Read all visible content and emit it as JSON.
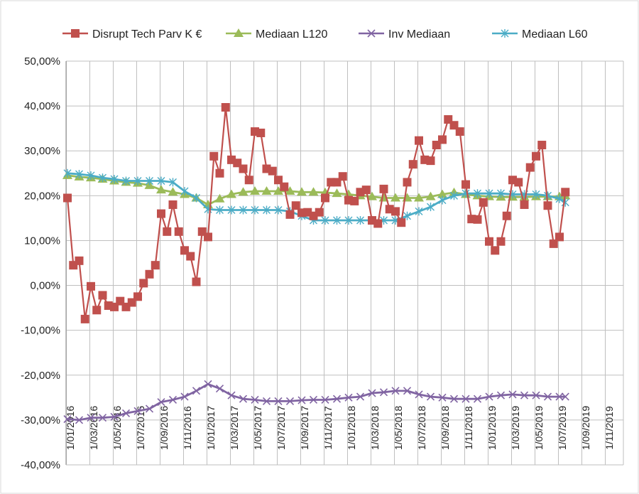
{
  "chart_data": {
    "type": "line",
    "title": "",
    "xlabel": "",
    "ylabel": "",
    "ylim": [
      -40,
      50
    ],
    "yticks": [
      50,
      40,
      30,
      20,
      10,
      0,
      -10,
      -20,
      -30,
      -40
    ],
    "ytick_labels": [
      "50,00%",
      "40,00%",
      "30,00%",
      "20,00%",
      "10,00%",
      "0,00%",
      "-10,00%",
      "-20,00%",
      "-30,00%",
      "-40,00%"
    ],
    "xticks": [
      "1/01/2016",
      "1/03/2016",
      "1/05/2016",
      "1/07/2016",
      "1/09/2016",
      "1/11/2016",
      "1/01/2017",
      "1/03/2017",
      "1/05/2017",
      "1/07/2017",
      "1/09/2017",
      "1/11/2017",
      "1/01/2018",
      "1/03/2018",
      "1/05/2018",
      "1/07/2018",
      "1/09/2018",
      "1/11/2018",
      "1/01/2019",
      "1/03/2019",
      "1/05/2019",
      "1/07/2019",
      "1/09/2019",
      "1/11/2019"
    ],
    "x_unit": "months since Jan 2016",
    "grid": true,
    "legend_position": "top",
    "series": [
      {
        "name": "Disrupt Tech Parv K €",
        "color": "#c0504d",
        "marker": "square",
        "points": [
          [
            0,
            19.5
          ],
          [
            0.5,
            4.5
          ],
          [
            1,
            5.5
          ],
          [
            1.5,
            -7.5
          ],
          [
            2,
            -0.2
          ],
          [
            2.5,
            -5.5
          ],
          [
            3,
            -2.2
          ],
          [
            3.5,
            -4.5
          ],
          [
            4,
            -4.8
          ],
          [
            4.5,
            -3.5
          ],
          [
            5,
            -4.8
          ],
          [
            5.5,
            -3.8
          ],
          [
            6,
            -2.5
          ],
          [
            6.5,
            0.5
          ],
          [
            7,
            2.5
          ],
          [
            7.5,
            4.5
          ],
          [
            8,
            16.0
          ],
          [
            8.5,
            12.0
          ],
          [
            9,
            18.0
          ],
          [
            9.5,
            12.0
          ],
          [
            10,
            7.8
          ],
          [
            10.5,
            6.5
          ],
          [
            11,
            0.8
          ],
          [
            11.5,
            12.0
          ],
          [
            12,
            10.8
          ],
          [
            12.5,
            28.8
          ],
          [
            13,
            25.0
          ],
          [
            13.5,
            39.7
          ],
          [
            14,
            28.0
          ],
          [
            14.5,
            27.3
          ],
          [
            15,
            26.0
          ],
          [
            15.5,
            23.5
          ],
          [
            16,
            34.3
          ],
          [
            16.5,
            34.0
          ],
          [
            17,
            26.0
          ],
          [
            17.5,
            25.5
          ],
          [
            18,
            23.5
          ],
          [
            18.5,
            22.0
          ],
          [
            19,
            15.8
          ],
          [
            19.5,
            17.8
          ],
          [
            20,
            16.2
          ],
          [
            20.5,
            16.3
          ],
          [
            21,
            15.5
          ],
          [
            21.5,
            16.3
          ],
          [
            22,
            19.5
          ],
          [
            22.5,
            23.0
          ],
          [
            23,
            23.0
          ],
          [
            23.5,
            24.3
          ],
          [
            24,
            19.0
          ],
          [
            24.5,
            18.8
          ],
          [
            25,
            20.8
          ],
          [
            25.5,
            21.3
          ],
          [
            26,
            14.5
          ],
          [
            26.5,
            13.8
          ],
          [
            27,
            21.5
          ],
          [
            27.5,
            17.0
          ],
          [
            28,
            16.5
          ],
          [
            28.5,
            14.0
          ],
          [
            29,
            23.0
          ],
          [
            29.5,
            27.0
          ],
          [
            30,
            32.3
          ],
          [
            30.5,
            28.0
          ],
          [
            31,
            27.8
          ],
          [
            31.5,
            31.3
          ],
          [
            32,
            32.5
          ],
          [
            32.5,
            37.0
          ],
          [
            33,
            35.7
          ],
          [
            33.5,
            34.3
          ],
          [
            34,
            22.5
          ],
          [
            34.5,
            14.8
          ],
          [
            35,
            14.7
          ],
          [
            35.5,
            18.5
          ],
          [
            36,
            9.8
          ],
          [
            36.5,
            7.8
          ],
          [
            37,
            9.8
          ],
          [
            37.5,
            15.5
          ],
          [
            38,
            23.5
          ],
          [
            38.5,
            23.0
          ],
          [
            39,
            18.0
          ],
          [
            39.5,
            26.3
          ],
          [
            40,
            28.8
          ],
          [
            40.5,
            31.3
          ],
          [
            41,
            17.8
          ],
          [
            41.5,
            9.3
          ],
          [
            42,
            10.8
          ],
          [
            42.5,
            20.8
          ]
        ]
      },
      {
        "name": "Mediaan L120",
        "color": "#9bbb59",
        "marker": "triangle",
        "points": [
          [
            0,
            24.5
          ],
          [
            1,
            24.2
          ],
          [
            2,
            24.0
          ],
          [
            3,
            23.7
          ],
          [
            4,
            23.3
          ],
          [
            5,
            23.0
          ],
          [
            6,
            22.8
          ],
          [
            7,
            22.3
          ],
          [
            8,
            21.3
          ],
          [
            9,
            20.8
          ],
          [
            10,
            20.3
          ],
          [
            11,
            19.5
          ],
          [
            12,
            18.0
          ],
          [
            13,
            19.3
          ],
          [
            14,
            20.3
          ],
          [
            15,
            20.8
          ],
          [
            16,
            21.0
          ],
          [
            17,
            21.0
          ],
          [
            18,
            21.0
          ],
          [
            19,
            21.0
          ],
          [
            20,
            20.8
          ],
          [
            21,
            20.8
          ],
          [
            22,
            20.7
          ],
          [
            23,
            20.5
          ],
          [
            24,
            20.3
          ],
          [
            25,
            20.0
          ],
          [
            26,
            19.8
          ],
          [
            27,
            19.5
          ],
          [
            28,
            19.5
          ],
          [
            29,
            19.5
          ],
          [
            30,
            19.5
          ],
          [
            31,
            19.8
          ],
          [
            32,
            20.3
          ],
          [
            33,
            20.7
          ],
          [
            34,
            20.3
          ],
          [
            35,
            20.0
          ],
          [
            36,
            19.8
          ],
          [
            37,
            19.7
          ],
          [
            38,
            19.7
          ],
          [
            39,
            19.7
          ],
          [
            40,
            19.8
          ],
          [
            41,
            19.8
          ],
          [
            42,
            19.8
          ],
          [
            42.5,
            20.0
          ]
        ]
      },
      {
        "name": "Inv Mediaan",
        "color": "#8064a2",
        "marker": "x",
        "points": [
          [
            0,
            -29.8
          ],
          [
            1,
            -30.0
          ],
          [
            2,
            -29.5
          ],
          [
            3,
            -29.5
          ],
          [
            4,
            -29.3
          ],
          [
            5,
            -28.5
          ],
          [
            6,
            -28.0
          ],
          [
            7,
            -27.5
          ],
          [
            8,
            -26.0
          ],
          [
            9,
            -25.5
          ],
          [
            10,
            -24.8
          ],
          [
            11,
            -23.5
          ],
          [
            12,
            -22.0
          ],
          [
            13,
            -23.0
          ],
          [
            14,
            -24.5
          ],
          [
            15,
            -25.3
          ],
          [
            16,
            -25.5
          ],
          [
            17,
            -25.8
          ],
          [
            18,
            -25.8
          ],
          [
            19,
            -25.8
          ],
          [
            20,
            -25.6
          ],
          [
            21,
            -25.5
          ],
          [
            22,
            -25.5
          ],
          [
            23,
            -25.3
          ],
          [
            24,
            -25.0
          ],
          [
            25,
            -24.8
          ],
          [
            26,
            -24.0
          ],
          [
            27,
            -23.8
          ],
          [
            28,
            -23.5
          ],
          [
            29,
            -23.5
          ],
          [
            30,
            -24.3
          ],
          [
            31,
            -24.8
          ],
          [
            32,
            -25.0
          ],
          [
            33,
            -25.3
          ],
          [
            34,
            -25.3
          ],
          [
            35,
            -25.3
          ],
          [
            36,
            -24.8
          ],
          [
            37,
            -24.5
          ],
          [
            38,
            -24.3
          ],
          [
            39,
            -24.5
          ],
          [
            40,
            -24.5
          ],
          [
            41,
            -24.8
          ],
          [
            42,
            -24.8
          ],
          [
            42.5,
            -24.8
          ]
        ]
      },
      {
        "name": "Mediaan L60",
        "color": "#4bacc6",
        "marker": "star",
        "points": [
          [
            0,
            25.0
          ],
          [
            1,
            24.8
          ],
          [
            2,
            24.5
          ],
          [
            3,
            24.0
          ],
          [
            4,
            23.7
          ],
          [
            5,
            23.3
          ],
          [
            6,
            23.3
          ],
          [
            7,
            23.3
          ],
          [
            8,
            23.3
          ],
          [
            9,
            23.0
          ],
          [
            10,
            21.0
          ],
          [
            11,
            19.5
          ],
          [
            12,
            17.0
          ],
          [
            13,
            16.8
          ],
          [
            14,
            16.8
          ],
          [
            15,
            16.8
          ],
          [
            16,
            16.8
          ],
          [
            17,
            16.8
          ],
          [
            18,
            16.8
          ],
          [
            19,
            16.5
          ],
          [
            20,
            15.5
          ],
          [
            21,
            14.5
          ],
          [
            22,
            14.5
          ],
          [
            23,
            14.5
          ],
          [
            24,
            14.5
          ],
          [
            25,
            14.5
          ],
          [
            26,
            14.5
          ],
          [
            27,
            14.5
          ],
          [
            28,
            14.5
          ],
          [
            29,
            15.5
          ],
          [
            30,
            16.5
          ],
          [
            31,
            17.5
          ],
          [
            32,
            19.0
          ],
          [
            33,
            20.0
          ],
          [
            34,
            20.5
          ],
          [
            35,
            20.5
          ],
          [
            36,
            20.5
          ],
          [
            37,
            20.5
          ],
          [
            38,
            20.3
          ],
          [
            39,
            20.3
          ],
          [
            40,
            20.3
          ],
          [
            41,
            20.0
          ],
          [
            42,
            19.3
          ],
          [
            42.5,
            18.5
          ]
        ]
      }
    ]
  }
}
